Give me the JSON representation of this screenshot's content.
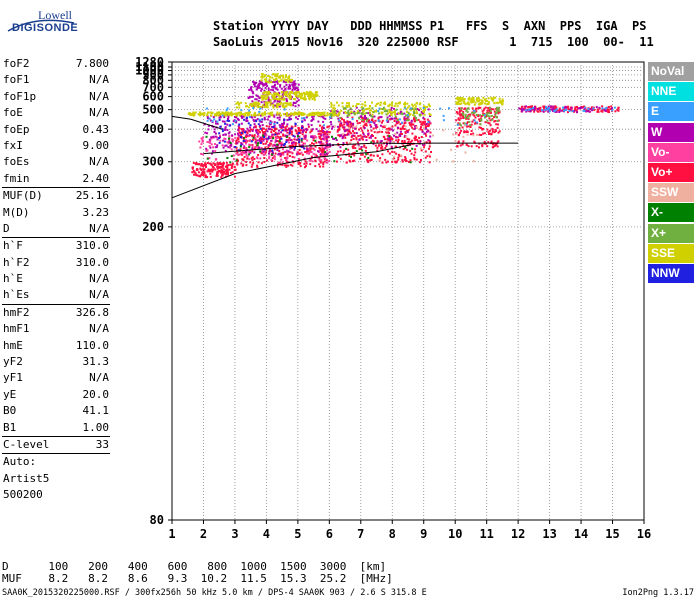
{
  "logo": {
    "line1": "Lowell",
    "line2": "DIGISONDE"
  },
  "header": {
    "labels": "Station YYYY DAY   DDD HHMMSS P1   FFS  S  AXN  PPS  IGA  PS",
    "values": "SaoLuis 2015 Nov16  320 225000 RSF       1  715  100  00-  11"
  },
  "params": [
    {
      "name": "foF2",
      "value": "7.800"
    },
    {
      "name": "foF1",
      "value": "N/A"
    },
    {
      "name": "foF1p",
      "value": "N/A"
    },
    {
      "name": "foE",
      "value": "N/A"
    },
    {
      "name": "foEp",
      "value": "0.43"
    },
    {
      "name": "fxI",
      "value": "9.00"
    },
    {
      "name": "foEs",
      "value": "N/A"
    },
    {
      "name": "fmin",
      "value": "2.40"
    },
    {
      "name": "MUF(D)",
      "value": "25.16",
      "sep": true
    },
    {
      "name": "M(D)",
      "value": "3.23"
    },
    {
      "name": "D",
      "value": "N/A"
    },
    {
      "name": "h`F",
      "value": "310.0",
      "sep": true
    },
    {
      "name": "h`F2",
      "value": "310.0"
    },
    {
      "name": "h`E",
      "value": "N/A"
    },
    {
      "name": "h`Es",
      "value": "N/A"
    },
    {
      "name": "hmF2",
      "value": "326.8",
      "sep": true
    },
    {
      "name": "hmF1",
      "value": "N/A"
    },
    {
      "name": "hmE",
      "value": "110.0"
    },
    {
      "name": "yF2",
      "value": "31.3"
    },
    {
      "name": "yF1",
      "value": "N/A"
    },
    {
      "name": "yE",
      "value": "20.0"
    },
    {
      "name": "B0",
      "value": "41.1"
    },
    {
      "name": "B1",
      "value": "1.00"
    },
    {
      "name": "C-level",
      "value": "33",
      "sep": true
    },
    {
      "name": "Auto:",
      "value": "",
      "sep": true
    },
    {
      "name": "Artist5",
      "value": ""
    },
    {
      "name": "500200",
      "value": ""
    }
  ],
  "legend": [
    {
      "label": "NoVal",
      "color": "#a0a0a0"
    },
    {
      "label": "NNE",
      "color": "#00e0e0"
    },
    {
      "label": "E",
      "color": "#3aa0ff"
    },
    {
      "label": "W",
      "color": "#b000b0"
    },
    {
      "label": "Vo-",
      "color": "#ff40a0"
    },
    {
      "label": "Vo+",
      "color": "#ff1040"
    },
    {
      "label": "SSW",
      "color": "#f0b0a0"
    },
    {
      "label": "X-",
      "color": "#008000"
    },
    {
      "label": "X+",
      "color": "#70b040"
    },
    {
      "label": "SSE",
      "color": "#d0d000"
    },
    {
      "label": "NNW",
      "color": "#2020e0"
    }
  ],
  "footer": {
    "d_line": "D      100   200   400   600   800  1000  1500  3000  [km]",
    "muf_line": "MUF    8.2   8.2   8.6   9.3  10.2  11.5  15.3  25.2  [MHz]",
    "file_line": "SAA0K_2015320225000.RSF / 300fx256h 50 kHz 5.0 km / DPS-4 SAA0K 903 / 2.6 S 315.8 E",
    "version": "Ion2Png 1.3.17"
  },
  "chart_data": {
    "type": "scatter",
    "xlim": [
      1,
      16
    ],
    "ylim": [
      80,
      1280
    ],
    "y_scale": "reciprocal",
    "xticks": [
      "1",
      "2",
      "3",
      "4",
      "5",
      "6",
      "7",
      "8",
      "9",
      "10",
      "11",
      "12",
      "13",
      "14",
      "15",
      "16"
    ],
    "yticks": [
      "80",
      "200",
      "300",
      "400",
      "500",
      "600",
      "700",
      "800",
      "900",
      "1000",
      "1100",
      "1280"
    ],
    "grid": true,
    "legend_position": "right",
    "clusters": [
      {
        "series": "Vo+",
        "xr": [
          1.6,
          3.0
        ],
        "yr": [
          270,
          300
        ],
        "n": 160
      },
      {
        "series": "Vo+",
        "xr": [
          3.0,
          6.0
        ],
        "yr": [
          290,
          420
        ],
        "n": 420
      },
      {
        "series": "Vo+",
        "xr": [
          6.2,
          9.2
        ],
        "yr": [
          300,
          460
        ],
        "n": 420
      },
      {
        "series": "Vo+",
        "xr": [
          10.0,
          11.4
        ],
        "yr": [
          380,
          520
        ],
        "n": 160
      },
      {
        "series": "Vo-",
        "xr": [
          1.8,
          6.0
        ],
        "yr": [
          300,
          380
        ],
        "n": 200
      },
      {
        "series": "W",
        "xr": [
          2.0,
          6.0
        ],
        "yr": [
          320,
          480
        ],
        "n": 300
      },
      {
        "series": "W",
        "xr": [
          3.4,
          5.0
        ],
        "yr": [
          520,
          800
        ],
        "n": 200
      },
      {
        "series": "W",
        "xr": [
          6.0,
          9.2
        ],
        "yr": [
          340,
          520
        ],
        "n": 160
      },
      {
        "series": "SSE",
        "xr": [
          1.5,
          6.3
        ],
        "yr": [
          470,
          490
        ],
        "n": 220
      },
      {
        "series": "SSE",
        "xr": [
          3.8,
          5.6
        ],
        "yr": [
          580,
          660
        ],
        "n": 160
      },
      {
        "series": "SSE",
        "xr": [
          3.0,
          4.8
        ],
        "yr": [
          520,
          560
        ],
        "n": 80
      },
      {
        "series": "SSE",
        "xr": [
          3.8,
          4.8
        ],
        "yr": [
          780,
          940
        ],
        "n": 60
      },
      {
        "series": "SSE",
        "xr": [
          6.0,
          9.2
        ],
        "yr": [
          470,
          560
        ],
        "n": 160
      },
      {
        "series": "SSE",
        "xr": [
          10.0,
          11.5
        ],
        "yr": [
          540,
          600
        ],
        "n": 110
      },
      {
        "series": "X+",
        "xr": [
          6.0,
          9.0
        ],
        "yr": [
          440,
          520
        ],
        "n": 60
      },
      {
        "series": "X+",
        "xr": [
          10.0,
          11.4
        ],
        "yr": [
          420,
          520
        ],
        "n": 50
      },
      {
        "series": "NNW",
        "xr": [
          2.4,
          5.2
        ],
        "yr": [
          330,
          460
        ],
        "n": 60
      },
      {
        "series": "E",
        "xr": [
          2.0,
          11.0
        ],
        "yr": [
          420,
          520
        ],
        "n": 50
      },
      {
        "series": "X-",
        "xr": [
          2.0,
          9.0
        ],
        "yr": [
          300,
          380
        ],
        "n": 40
      },
      {
        "series": "SSW",
        "xr": [
          6.0,
          11.0
        ],
        "yr": [
          300,
          420
        ],
        "n": 40
      },
      {
        "series": "Vo+",
        "xr": [
          12.0,
          15.2
        ],
        "yr": [
          490,
          530
        ],
        "n": 120
      },
      {
        "series": "W",
        "xr": [
          12.0,
          15.0
        ],
        "yr": [
          490,
          530
        ],
        "n": 60
      },
      {
        "series": "E",
        "xr": [
          12.2,
          15.2
        ],
        "yr": [
          495,
          525
        ],
        "n": 30
      },
      {
        "series": "Vo+",
        "xr": [
          10.0,
          11.4
        ],
        "yr": [
          340,
          360
        ],
        "n": 40
      }
    ],
    "trace_lines": [
      {
        "series": "trace",
        "points": [
          [
            1.0,
            235
          ],
          [
            3.0,
            275
          ],
          [
            5.5,
            310
          ],
          [
            7.5,
            325
          ],
          [
            8.6,
            345
          ]
        ]
      },
      {
        "series": "trace",
        "points": [
          [
            2.0,
            320
          ],
          [
            5.0,
            340
          ],
          [
            7.5,
            350
          ],
          [
            9.0,
            348
          ]
        ]
      },
      {
        "series": "trace",
        "points": [
          [
            9.0,
            350
          ],
          [
            12.0,
            350
          ]
        ]
      },
      {
        "series": "trace",
        "points": [
          [
            1.0,
            460
          ],
          [
            1.6,
            445
          ],
          [
            2.6,
            400
          ]
        ]
      }
    ]
  }
}
